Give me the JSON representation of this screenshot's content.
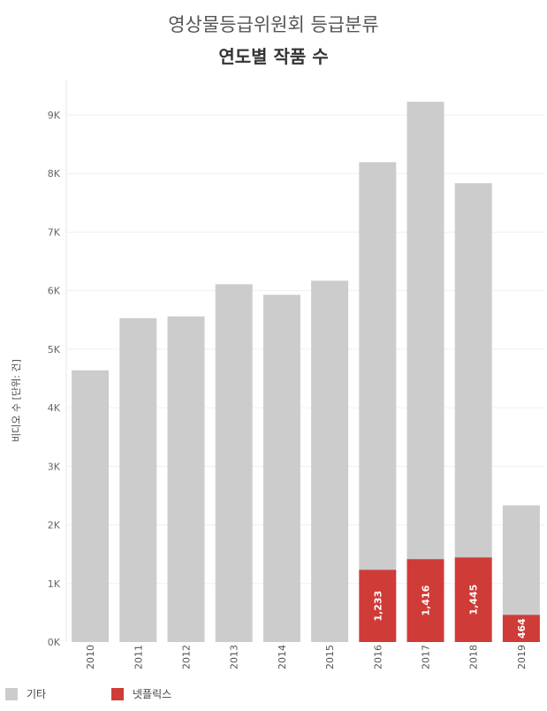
{
  "title": "영상물등급위원회 등급분류",
  "subtitle": "연도별 작품 수",
  "chart_data": {
    "type": "bar",
    "stacked": true,
    "title": "영상물등급위원회 등급분류",
    "subtitle": "연도별 작품 수",
    "xlabel": "",
    "ylabel": "비디오 수 [단위: 건]",
    "ylim": [
      0,
      9500
    ],
    "yticks": [
      0,
      1000,
      2000,
      3000,
      4000,
      5000,
      6000,
      7000,
      8000,
      9000
    ],
    "ytick_labels": [
      "0K",
      "1K",
      "2K",
      "3K",
      "4K",
      "5K",
      "6K",
      "7K",
      "8K",
      "9K"
    ],
    "categories": [
      "2010",
      "2011",
      "2012",
      "2013",
      "2014",
      "2015",
      "2016",
      "2017",
      "2018",
      "2019"
    ],
    "series": [
      {
        "name": "넷플릭스",
        "color": "#cf3b37",
        "values": [
          0,
          0,
          0,
          0,
          0,
          0,
          1233,
          1416,
          1445,
          464
        ],
        "labels": [
          "",
          "",
          "",
          "",
          "",
          "",
          "1,233",
          "1,416",
          "1,445",
          "464"
        ]
      },
      {
        "name": "기타",
        "color": "#cccccc",
        "values": [
          4640,
          5530,
          5560,
          6110,
          5930,
          6170,
          6960,
          7810,
          6390,
          1870
        ]
      }
    ],
    "legend_position": "bottom-left",
    "grid": true
  },
  "legend": [
    {
      "label": "기타",
      "color": "#cccccc"
    },
    {
      "label": "넷플릭스",
      "color": "#cf3b37"
    }
  ]
}
